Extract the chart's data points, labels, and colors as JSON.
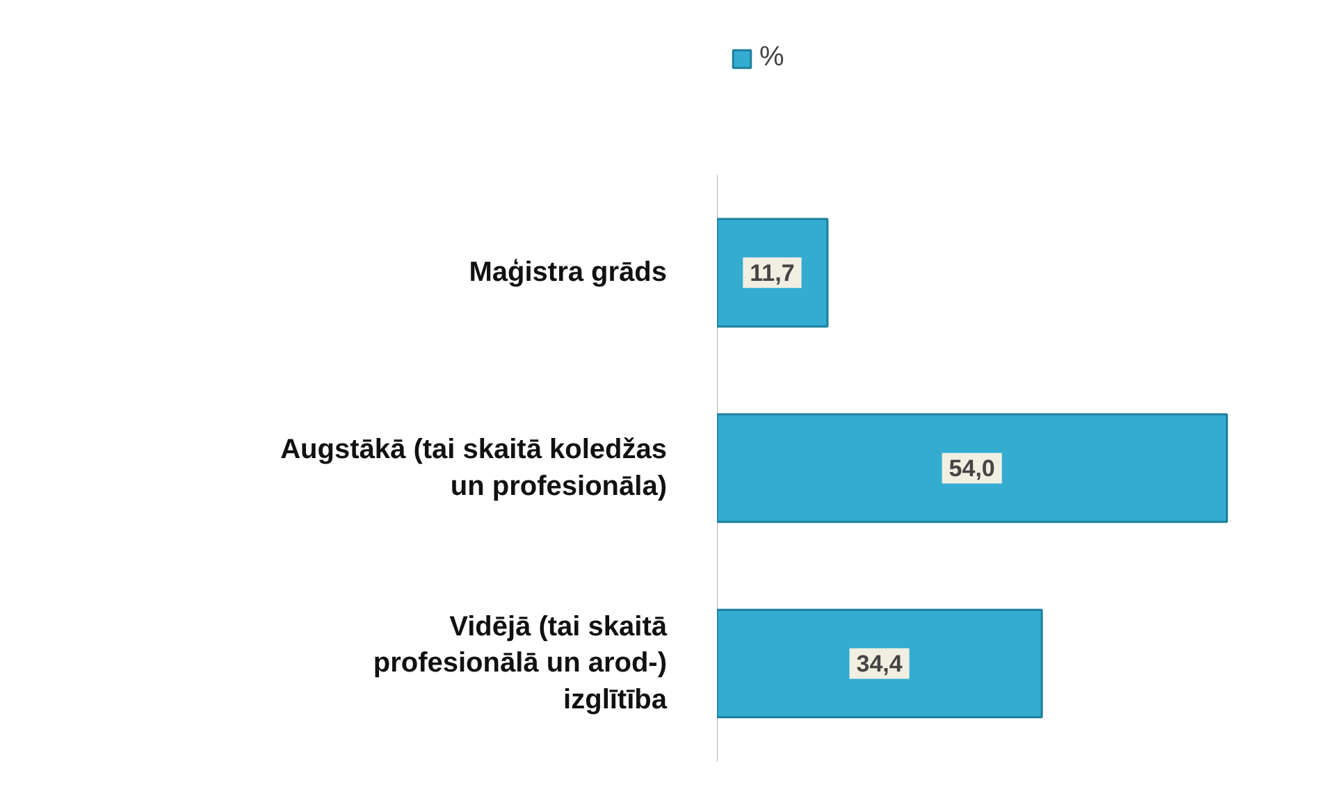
{
  "chart_data": {
    "type": "bar",
    "orientation": "horizontal",
    "categories": [
      "Maģistra grāds",
      "Augstākā (tai skaitā koledžas un profesionāla)",
      "Vidējā (tai skaitā profesionālā un arod-) izglītība"
    ],
    "series": [
      {
        "name": "%",
        "color": "#33acd0",
        "values": [
          11.7,
          54.0,
          34.4
        ],
        "value_labels": [
          "11,7",
          "54,0",
          "34,4"
        ]
      }
    ],
    "legend": "top",
    "grid": false
  }
}
